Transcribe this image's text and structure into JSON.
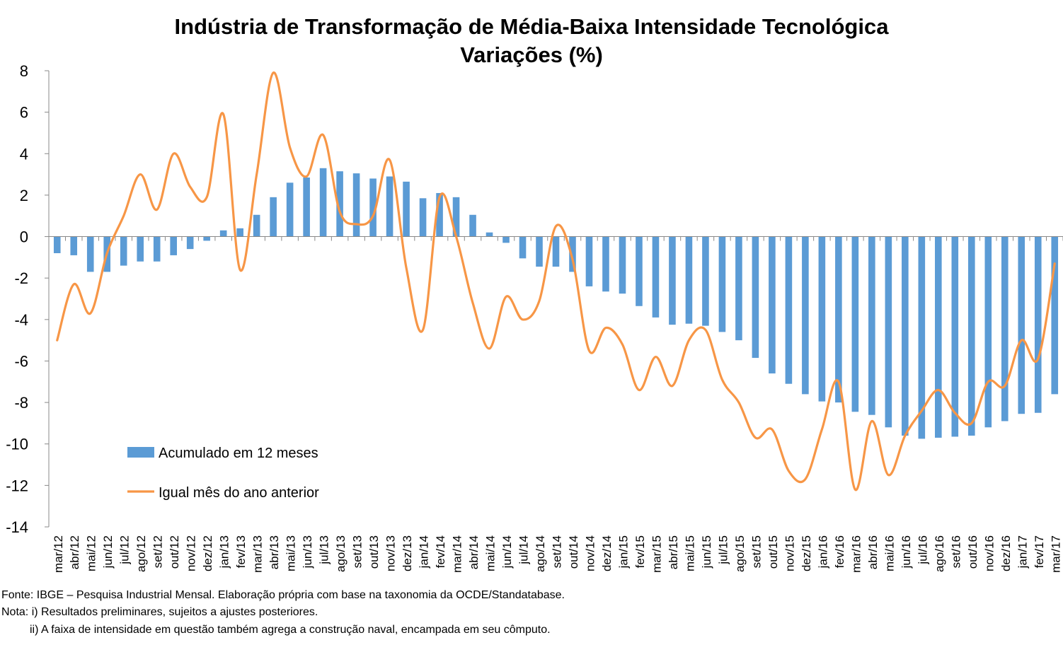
{
  "chart_data": {
    "type": "bar+line",
    "title": "Indústria de Transformação de Média-Baixa Intensidade Tecnológica",
    "subtitle": "Variações (%)",
    "ylim": [
      -14,
      8
    ],
    "yticks": [
      8,
      6,
      4,
      2,
      0,
      -2,
      -4,
      -6,
      -8,
      -10,
      -12,
      -14
    ],
    "grid": false,
    "legend_position": "bottom-left",
    "categories": [
      "mar/12",
      "abr/12",
      "mai/12",
      "jun/12",
      "jul/12",
      "ago/12",
      "set/12",
      "out/12",
      "nov/12",
      "dez/12",
      "jan/13",
      "fev/13",
      "mar/13",
      "abr/13",
      "mai/13",
      "jun/13",
      "jul/13",
      "ago/13",
      "set/13",
      "out/13",
      "nov/13",
      "dez/13",
      "jan/14",
      "fev/14",
      "mar/14",
      "abr/14",
      "mai/14",
      "jun/14",
      "jul/14",
      "ago/14",
      "set/14",
      "out/14",
      "nov/14",
      "dez/14",
      "jan/15",
      "fev/15",
      "mar/15",
      "abr/15",
      "mai/15",
      "jun/15",
      "jul/15",
      "ago/15",
      "set/15",
      "out/15",
      "nov/15",
      "dez/15",
      "jan/16",
      "fev/16",
      "mar/16",
      "abr/16",
      "mai/16",
      "jun/16",
      "jul/16",
      "ago/16",
      "set/16",
      "out/16",
      "nov/16",
      "dez/16",
      "jan/17",
      "fev/17",
      "mar/17"
    ],
    "series": [
      {
        "name": "Acumulado em 12 meses",
        "type": "bar",
        "color": "#5b9bd5",
        "values": [
          -0.8,
          -0.9,
          -1.7,
          -1.7,
          -1.4,
          -1.2,
          -1.2,
          -0.9,
          -0.6,
          -0.2,
          0.3,
          0.4,
          1.05,
          1.9,
          2.6,
          2.85,
          3.3,
          3.15,
          3.05,
          2.8,
          2.9,
          2.65,
          1.85,
          2.1,
          1.9,
          1.05,
          0.2,
          -0.3,
          -1.05,
          -1.45,
          -1.45,
          -1.7,
          -2.4,
          -2.65,
          -2.75,
          -3.35,
          -3.9,
          -4.25,
          -4.2,
          -4.3,
          -4.6,
          -5.0,
          -5.85,
          -6.6,
          -7.1,
          -7.6,
          -7.95,
          -8.0,
          -8.45,
          -8.6,
          -9.2,
          -9.6,
          -9.75,
          -9.7,
          -9.65,
          -9.6,
          -9.2,
          -8.9,
          -8.55,
          -8.5,
          -7.6
        ]
      },
      {
        "name": "Igual mês do ano anterior",
        "type": "line",
        "color": "#f79646",
        "values": [
          -5.0,
          -2.3,
          -3.7,
          -0.8,
          1.0,
          3.0,
          1.3,
          4.0,
          2.4,
          1.9,
          5.9,
          -1.6,
          3.0,
          7.9,
          4.3,
          2.9,
          4.9,
          1.2,
          0.6,
          1.0,
          3.7,
          -1.5,
          -4.5,
          1.9,
          0.0,
          -3.2,
          -5.4,
          -2.9,
          -4.0,
          -3.1,
          0.5,
          -1.1,
          -5.5,
          -4.4,
          -5.2,
          -7.4,
          -5.8,
          -7.2,
          -5.0,
          -4.5,
          -6.9,
          -8.0,
          -9.7,
          -9.3,
          -11.3,
          -11.7,
          -9.3,
          -7.0,
          -12.2,
          -8.9,
          -11.5,
          -9.6,
          -8.4,
          -7.4,
          -8.5,
          -9.0,
          -7.0,
          -7.2,
          -5.0,
          -5.9,
          -1.3
        ]
      }
    ]
  },
  "footnotes": {
    "fonte": "Fonte: IBGE – Pesquisa Industrial Mensal. Elaboração própria com base na taxonomia da OCDE/Standatabase.",
    "nota1": "Nota: i) Resultados preliminares, sujeitos a ajustes posteriores.",
    "nota2": "ii) A faixa de intensidade em questão também agrega a construção naval, encampada em seu cômputo."
  }
}
